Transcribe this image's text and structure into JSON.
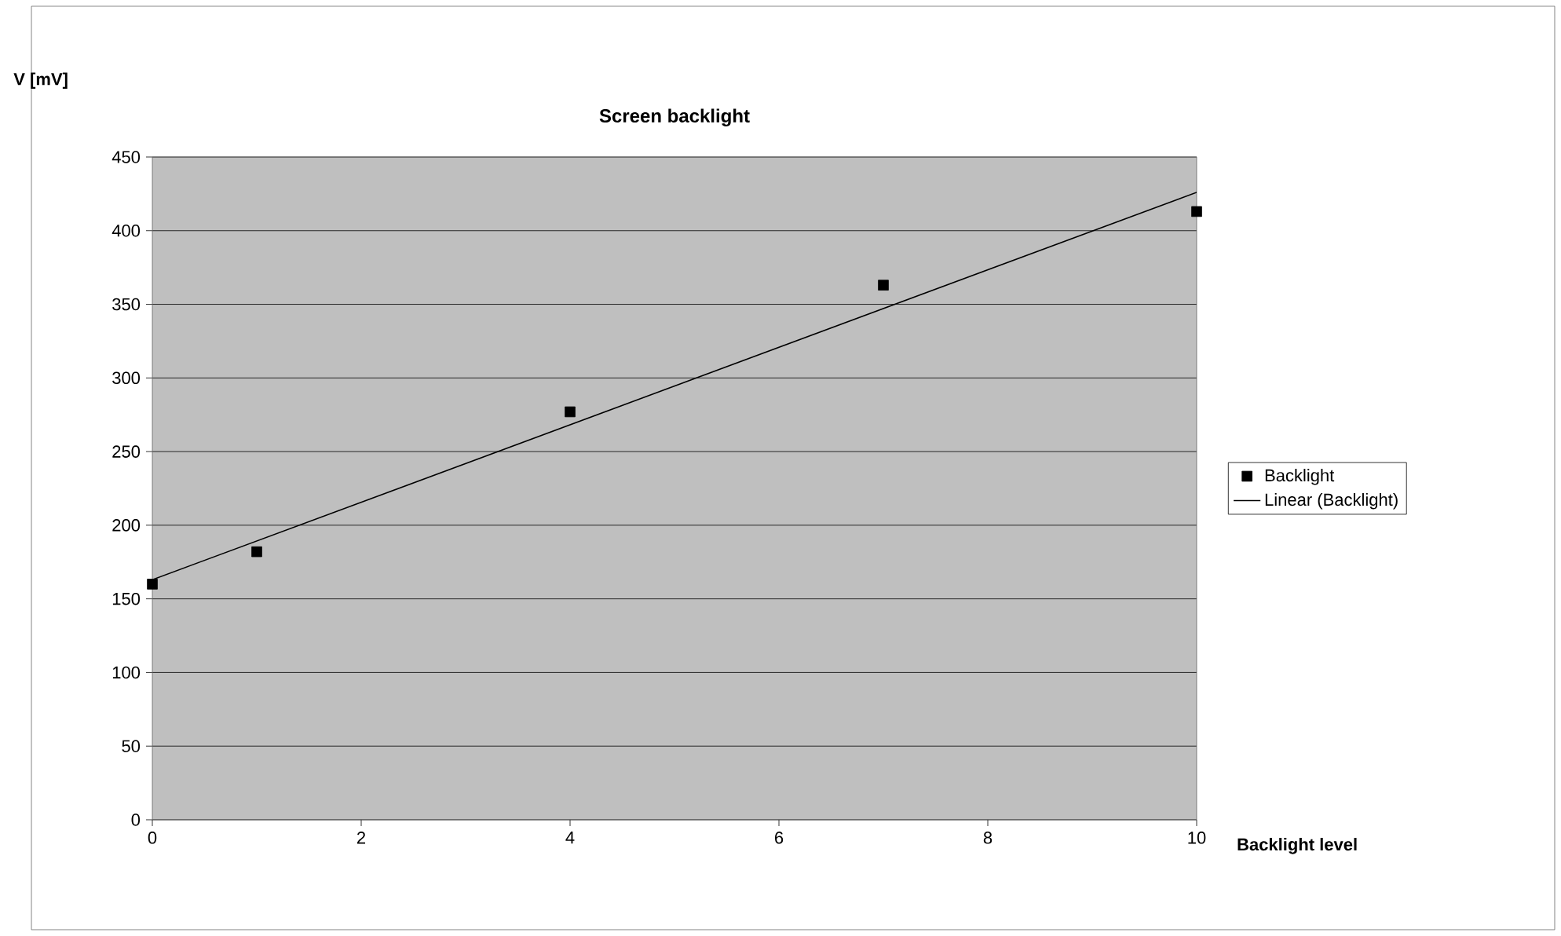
{
  "chart_data": {
    "type": "scatter",
    "title": "Screen backlight",
    "xlabel": "Backlight level",
    "ylabel": "V [mV]",
    "series": [
      {
        "name": "Backlight",
        "color": "#000000",
        "marker": "square",
        "x": [
          0,
          1,
          4,
          7,
          10
        ],
        "values": [
          160,
          182,
          277,
          363,
          413
        ]
      },
      {
        "name": "Linear (Backlight)",
        "type": "line",
        "color": "#000000",
        "marker": "none",
        "line_style": "solid",
        "x": [
          0,
          10
        ],
        "values": [
          163,
          426
        ]
      }
    ],
    "xlim": [
      0,
      10
    ],
    "xticks": [
      0,
      2,
      4,
      6,
      8,
      10
    ],
    "ylim": [
      0,
      450
    ],
    "yticks": [
      0,
      50,
      100,
      150,
      200,
      250,
      300,
      350,
      400,
      450
    ],
    "grid": "y",
    "legend": "right"
  }
}
